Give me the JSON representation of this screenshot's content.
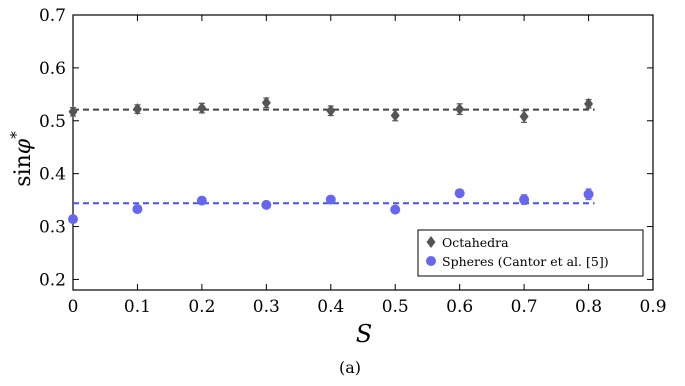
{
  "chart_data": {
    "type": "scatter",
    "xlabel": "S",
    "ylabel_main": "sin",
    "ylabel_symbol": "φ",
    "ylabel_sup": "*",
    "xlim": [
      0,
      0.9
    ],
    "ylim": [
      0.18,
      0.7
    ],
    "xticks": [
      "0",
      "0.1",
      "0.2",
      "0.3",
      "0.4",
      "0.5",
      "0.6",
      "0.7",
      "0.8",
      "0.9"
    ],
    "yticks": [
      "0.2",
      "0.3",
      "0.4",
      "0.5",
      "0.6",
      "0.7"
    ],
    "series": [
      {
        "name": "Octahedra",
        "marker": "diamond",
        "color": "#555555",
        "x": [
          0,
          0.1,
          0.2,
          0.3,
          0.4,
          0.5,
          0.6,
          0.7,
          0.8
        ],
        "y": [
          0.517,
          0.522,
          0.524,
          0.534,
          0.519,
          0.51,
          0.522,
          0.508,
          0.532
        ],
        "yerr": [
          0.008,
          0.008,
          0.009,
          0.009,
          0.009,
          0.01,
          0.01,
          0.011,
          0.008
        ],
        "mean_line": 0.521
      },
      {
        "name": "Spheres (Cantor et al. [5])",
        "marker": "circle",
        "color": "#6666ee",
        "x": [
          0,
          0.1,
          0.2,
          0.3,
          0.4,
          0.5,
          0.6,
          0.7,
          0.8
        ],
        "y": [
          0.314,
          0.333,
          0.349,
          0.341,
          0.351,
          0.332,
          0.363,
          0.351,
          0.361
        ],
        "yerr": [
          0.005,
          0.005,
          0.006,
          0.005,
          0.005,
          0.005,
          0.006,
          0.009,
          0.01
        ],
        "mean_line": 0.344
      }
    ],
    "legend_position": "bottom-right",
    "grid": false,
    "caption": "(a)"
  }
}
